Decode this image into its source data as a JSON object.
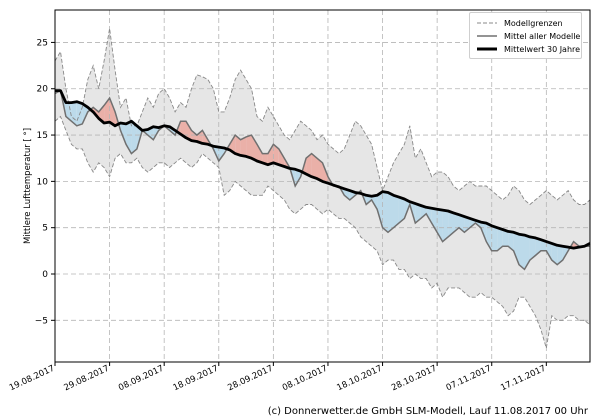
{
  "chart_data": {
    "type": "line",
    "ylabel": "Mittlere Lufttemperatur [ °]",
    "xlabel": "",
    "ylim": [
      -9.5,
      28.5
    ],
    "xlim": [
      0,
      98
    ],
    "yticks": [
      -5,
      0,
      5,
      10,
      15,
      20,
      25
    ],
    "xticks": [
      {
        "x": 0,
        "label": "19.08.2017"
      },
      {
        "x": 10,
        "label": "29.08.2017"
      },
      {
        "x": 20,
        "label": "08.09.2017"
      },
      {
        "x": 30,
        "label": "18.09.2017"
      },
      {
        "x": 40,
        "label": "28.09.2017"
      },
      {
        "x": 50,
        "label": "08.10.2017"
      },
      {
        "x": 60,
        "label": "18.10.2017"
      },
      {
        "x": 70,
        "label": "28.10.2017"
      },
      {
        "x": 80,
        "label": "07.11.2017"
      },
      {
        "x": 90,
        "label": "17.11.2017"
      }
    ],
    "grid": true,
    "legend_position": "top-right",
    "credit": "(c) Donnerwetter.de GmbH SLM-Modell, Lauf 11.08.2017 00 Uhr",
    "series": [
      {
        "name": "Modellgrenzen",
        "role": "upper",
        "values": [
          23.0,
          24.0,
          20.0,
          17.0,
          16.5,
          18.0,
          21.0,
          22.5,
          20.0,
          23.0,
          26.5,
          22.0,
          18.0,
          19.0,
          16.0,
          16.0,
          17.5,
          19.0,
          18.0,
          19.5,
          20.0,
          19.0,
          17.5,
          18.5,
          18.0,
          20.0,
          21.5,
          21.3,
          21.0,
          20.0,
          17.5,
          17.5,
          19.0,
          21.0,
          22.0,
          21.0,
          20.0,
          17.0,
          16.5,
          18.0,
          17.0,
          16.0,
          15.0,
          14.5,
          15.5,
          16.5,
          16.0,
          15.5,
          14.5,
          15.0,
          14.0,
          13.5,
          13.0,
          13.5,
          15.0,
          16.5,
          16.0,
          15.0,
          14.0,
          11.5,
          9.0,
          10.5,
          12.0,
          13.0,
          14.0,
          16.0,
          12.5,
          13.5,
          12.0,
          10.5,
          11.0,
          11.0,
          10.5,
          9.5,
          9.0,
          9.5,
          10.0,
          9.5,
          9.5,
          9.5,
          9.0,
          8.5,
          8.0,
          8.5,
          9.5,
          9.0,
          8.0,
          7.5,
          8.0,
          8.5,
          9.0,
          8.5,
          8.0,
          8.5,
          9.0,
          8.0,
          7.5,
          7.5,
          8.0
        ]
      },
      {
        "name": "Modellgrenzen",
        "role": "lower",
        "values": [
          16.5,
          17.0,
          15.5,
          14.0,
          13.5,
          13.5,
          12.0,
          11.0,
          12.0,
          11.5,
          10.5,
          12.5,
          13.0,
          12.0,
          12.0,
          12.5,
          11.5,
          11.0,
          11.5,
          12.0,
          12.0,
          11.5,
          12.0,
          12.5,
          12.0,
          11.5,
          12.0,
          13.0,
          12.5,
          12.0,
          11.5,
          8.5,
          9.0,
          10.0,
          9.5,
          9.0,
          8.5,
          8.5,
          8.5,
          9.5,
          9.0,
          8.5,
          8.0,
          7.0,
          6.5,
          7.0,
          7.5,
          7.5,
          7.0,
          6.5,
          7.0,
          6.5,
          6.0,
          6.0,
          5.5,
          5.0,
          4.0,
          3.5,
          3.0,
          2.5,
          1.0,
          1.5,
          1.5,
          0.5,
          0.5,
          -0.5,
          0.0,
          -0.5,
          -0.5,
          -1.5,
          -1.0,
          -2.5,
          -1.5,
          -1.5,
          -1.5,
          -2.0,
          -2.5,
          -2.5,
          -2.0,
          -2.5,
          -2.5,
          -3.0,
          -3.5,
          -4.5,
          -4.0,
          -2.5,
          -2.5,
          -3.5,
          -4.5,
          -6.0,
          -8.0,
          -4.5,
          -5.0,
          -5.0,
          -4.5,
          -4.5,
          -5.0,
          -5.0,
          -5.5
        ]
      },
      {
        "name": "Mittel aller Modelle",
        "role": "mean",
        "values": [
          19.5,
          19.8,
          17.0,
          16.5,
          16.0,
          16.2,
          17.5,
          18.0,
          17.5,
          18.2,
          19.0,
          17.5,
          15.5,
          14.0,
          13.0,
          13.5,
          15.5,
          15.0,
          14.5,
          15.5,
          16.0,
          15.5,
          15.0,
          16.5,
          16.5,
          15.5,
          15.0,
          15.5,
          14.5,
          13.5,
          12.2,
          13.0,
          14.0,
          15.0,
          14.5,
          14.8,
          15.0,
          14.0,
          13.0,
          13.0,
          14.0,
          13.5,
          12.5,
          11.5,
          9.5,
          10.5,
          12.5,
          13.0,
          12.5,
          12.0,
          10.5,
          9.5,
          9.5,
          8.5,
          8.0,
          8.5,
          9.0,
          7.5,
          8.0,
          7.0,
          5.0,
          4.5,
          5.0,
          5.5,
          6.0,
          7.5,
          5.5,
          6.0,
          6.5,
          5.5,
          4.5,
          3.5,
          4.0,
          4.5,
          5.0,
          4.5,
          5.0,
          5.5,
          5.0,
          3.5,
          2.5,
          2.5,
          3.0,
          3.0,
          2.5,
          1.0,
          0.5,
          1.5,
          2.0,
          2.5,
          2.5,
          1.5,
          1.0,
          1.5,
          2.5,
          3.5,
          3.0,
          3.0,
          3.0
        ]
      },
      {
        "name": "Mittelwert 30 Jahre",
        "role": "climate",
        "values": [
          19.8,
          19.8,
          18.5,
          18.5,
          18.6,
          18.4,
          18.0,
          17.5,
          16.8,
          16.3,
          16.4,
          16.0,
          16.3,
          16.2,
          16.5,
          16.0,
          15.5,
          15.6,
          15.9,
          15.8,
          16.0,
          15.9,
          15.5,
          15.1,
          14.7,
          14.4,
          14.3,
          14.1,
          14.0,
          13.8,
          13.7,
          13.6,
          13.4,
          13.0,
          12.8,
          12.7,
          12.5,
          12.2,
          12.0,
          11.8,
          12.0,
          11.8,
          11.6,
          11.4,
          11.3,
          11.1,
          10.8,
          10.5,
          10.3,
          10.0,
          9.8,
          9.6,
          9.4,
          9.2,
          9.0,
          8.8,
          8.7,
          8.5,
          8.4,
          8.5,
          8.9,
          8.8,
          8.5,
          8.3,
          8.1,
          7.8,
          7.6,
          7.4,
          7.2,
          7.1,
          7.0,
          6.9,
          6.8,
          6.6,
          6.4,
          6.2,
          6.0,
          5.8,
          5.6,
          5.5,
          5.2,
          5.0,
          4.8,
          4.6,
          4.5,
          4.3,
          4.2,
          4.0,
          3.9,
          3.7,
          3.5,
          3.3,
          3.1,
          3.0,
          2.9,
          2.8,
          2.9,
          3.0,
          3.3
        ]
      }
    ],
    "colors": {
      "band_fill": "#e6e6e6",
      "band_edge": "#888888",
      "mean_line": "#707070",
      "climate_line": "#000000",
      "above_fill": "#eab0a8",
      "below_fill": "#bcdaea"
    }
  },
  "legend": {
    "items": [
      {
        "label": "Modellgrenzen"
      },
      {
        "label": "Mittel aller Modelle"
      },
      {
        "label": "Mittelwert 30 Jahre"
      }
    ]
  }
}
